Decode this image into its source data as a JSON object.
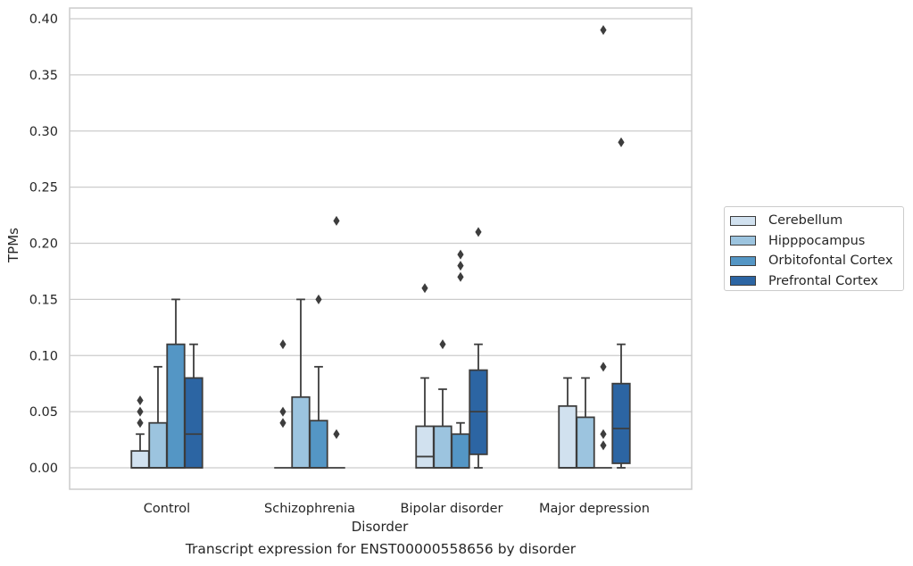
{
  "chart_data": {
    "type": "box",
    "title": "Transcript expression for ENST00000558656 by disorder",
    "xlabel": "Disorder",
    "ylabel": "TPMs",
    "ylim": [
      -0.019,
      0.41
    ],
    "yticks": [
      "0.00",
      "0.05",
      "0.10",
      "0.15",
      "0.20",
      "0.25",
      "0.30",
      "0.35",
      "0.40"
    ],
    "grid": "horizontal",
    "legend_position": "right",
    "categories": [
      "Control",
      "Schizophrenia",
      "Bipolar disorder",
      "Major depression"
    ],
    "series": [
      {
        "name": "Cerebellum",
        "color": "#d1e1ef",
        "boxes": [
          {
            "whisker_low": 0,
            "q1": 0,
            "median": 0,
            "q3": 0.015,
            "whisker_high": 0.03,
            "outliers": [
              0.04,
              0.05,
              0.06
            ]
          },
          {
            "whisker_low": 0,
            "q1": 0,
            "median": 0,
            "q3": 0,
            "whisker_high": 0,
            "outliers": [
              0.04,
              0.05,
              0.11
            ]
          },
          {
            "whisker_low": 0,
            "q1": 0,
            "median": 0.01,
            "q3": 0.037,
            "whisker_high": 0.08,
            "outliers": [
              0.16
            ]
          },
          {
            "whisker_low": 0,
            "q1": 0,
            "median": 0,
            "q3": 0.055,
            "whisker_high": 0.08,
            "outliers": []
          }
        ]
      },
      {
        "name": "Hipppocampus",
        "color": "#9cc4df",
        "boxes": [
          {
            "whisker_low": 0,
            "q1": 0,
            "median": 0,
            "q3": 0.04,
            "whisker_high": 0.09,
            "outliers": []
          },
          {
            "whisker_low": 0,
            "q1": 0,
            "median": 0,
            "q3": 0.063,
            "whisker_high": 0.15,
            "outliers": []
          },
          {
            "whisker_low": 0,
            "q1": 0,
            "median": 0,
            "q3": 0.037,
            "whisker_high": 0.07,
            "outliers": [
              0.11
            ]
          },
          {
            "whisker_low": 0,
            "q1": 0,
            "median": 0,
            "q3": 0.045,
            "whisker_high": 0.08,
            "outliers": []
          }
        ]
      },
      {
        "name": "Orbitofontal Cortex",
        "color": "#5496c5",
        "boxes": [
          {
            "whisker_low": 0,
            "q1": 0,
            "median": 0,
            "q3": 0.11,
            "whisker_high": 0.15,
            "outliers": []
          },
          {
            "whisker_low": 0,
            "q1": 0,
            "median": 0,
            "q3": 0.042,
            "whisker_high": 0.09,
            "outliers": [
              0.15
            ]
          },
          {
            "whisker_low": 0,
            "q1": 0,
            "median": 0,
            "q3": 0.03,
            "whisker_high": 0.04,
            "outliers": [
              0.17,
              0.18,
              0.19
            ]
          },
          {
            "whisker_low": 0,
            "q1": 0,
            "median": 0,
            "q3": 0,
            "whisker_high": 0,
            "outliers": [
              0.02,
              0.03,
              0.09,
              0.39
            ]
          }
        ]
      },
      {
        "name": "Prefrontal Cortex",
        "color": "#2c65a3",
        "boxes": [
          {
            "whisker_low": 0,
            "q1": 0,
            "median": 0.03,
            "q3": 0.08,
            "whisker_high": 0.11,
            "outliers": []
          },
          {
            "whisker_low": 0,
            "q1": 0,
            "median": 0,
            "q3": 0,
            "whisker_high": 0,
            "outliers": [
              0.03,
              0.22
            ]
          },
          {
            "whisker_low": 0,
            "q1": 0.012,
            "median": 0.05,
            "q3": 0.087,
            "whisker_high": 0.11,
            "outliers": [
              0.21
            ]
          },
          {
            "whisker_low": 0,
            "q1": 0.004,
            "median": 0.035,
            "q3": 0.075,
            "whisker_high": 0.11,
            "outliers": [
              0.29
            ]
          }
        ]
      }
    ]
  }
}
